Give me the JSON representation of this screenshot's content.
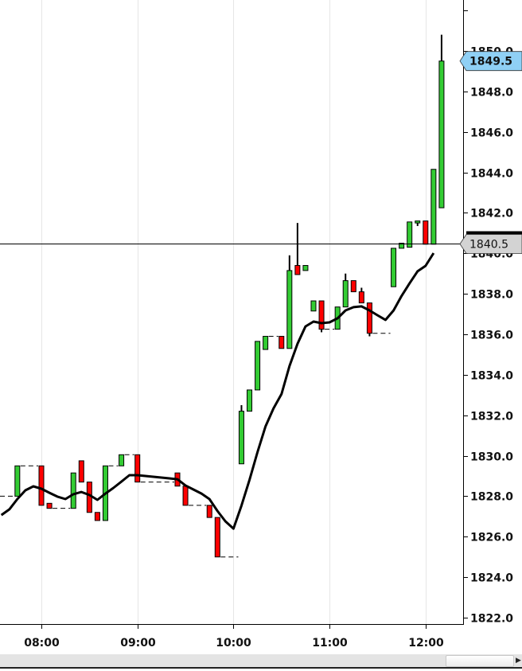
{
  "chart_data": {
    "type": "candlestick",
    "ylim": [
      1821.5,
      1852.5
    ],
    "y_ticks": [
      "1822.0",
      "1824.0",
      "1826.0",
      "1828.0",
      "1830.0",
      "1832.0",
      "1834.0",
      "1836.0",
      "1838.0",
      "1840.0",
      "1842.0",
      "1844.0",
      "1846.0",
      "1848.0",
      "1850.0"
    ],
    "x_ticks": [
      "08:00",
      "09:00",
      "10:00",
      "11:00",
      "12:00"
    ],
    "grid": "vertical",
    "colors": {
      "up": "#33cc33",
      "down": "#ff0000",
      "ma": "#000000",
      "last_price_label": "#8fd0f5",
      "crosshair_label": "#d3d3d3"
    },
    "candles": [
      {
        "t": "07:45",
        "o": 1828.0,
        "h": 1829.5,
        "l": 1828.0,
        "c": 1829.5
      },
      {
        "t": "08:00",
        "o": 1829.5,
        "h": 1829.5,
        "l": 1827.55,
        "c": 1827.55
      },
      {
        "t": "08:05",
        "o": 1827.65,
        "h": 1827.65,
        "l": 1827.4,
        "c": 1827.4
      },
      {
        "t": "08:20",
        "o": 1827.4,
        "h": 1829.15,
        "l": 1827.4,
        "c": 1829.15
      },
      {
        "t": "08:25",
        "o": 1829.75,
        "h": 1829.75,
        "l": 1828.7,
        "c": 1828.7
      },
      {
        "t": "08:30",
        "o": 1828.7,
        "h": 1828.7,
        "l": 1827.2,
        "c": 1827.2
      },
      {
        "t": "08:35",
        "o": 1827.2,
        "h": 1827.2,
        "l": 1826.8,
        "c": 1826.8
      },
      {
        "t": "08:40",
        "o": 1826.8,
        "h": 1829.5,
        "l": 1826.8,
        "c": 1829.5
      },
      {
        "t": "08:50",
        "o": 1829.5,
        "h": 1830.05,
        "l": 1829.5,
        "c": 1830.05
      },
      {
        "t": "09:00",
        "o": 1830.05,
        "h": 1830.05,
        "l": 1828.7,
        "c": 1828.7
      },
      {
        "t": "09:25",
        "o": 1829.15,
        "h": 1829.15,
        "l": 1828.5,
        "c": 1828.5
      },
      {
        "t": "09:30",
        "o": 1828.5,
        "h": 1828.5,
        "l": 1827.55,
        "c": 1827.55
      },
      {
        "t": "09:45",
        "o": 1827.55,
        "h": 1827.55,
        "l": 1826.95,
        "c": 1826.95
      },
      {
        "t": "09:50",
        "o": 1826.95,
        "h": 1826.95,
        "l": 1825.0,
        "c": 1825.0
      },
      {
        "t": "10:05",
        "o": 1829.6,
        "h": 1832.5,
        "l": 1829.6,
        "c": 1832.2
      },
      {
        "t": "10:10",
        "o": 1832.2,
        "h": 1833.25,
        "l": 1832.2,
        "c": 1833.25
      },
      {
        "t": "10:15",
        "o": 1833.25,
        "h": 1835.65,
        "l": 1833.25,
        "c": 1835.65
      },
      {
        "t": "10:20",
        "o": 1835.25,
        "h": 1835.9,
        "l": 1835.25,
        "c": 1835.9
      },
      {
        "t": "10:30",
        "o": 1835.9,
        "h": 1835.9,
        "l": 1835.3,
        "c": 1835.3
      },
      {
        "t": "10:35",
        "o": 1835.3,
        "h": 1839.9,
        "l": 1835.3,
        "c": 1839.15
      },
      {
        "t": "10:40",
        "o": 1839.4,
        "h": 1841.5,
        "l": 1838.95,
        "c": 1838.95
      },
      {
        "t": "10:45",
        "o": 1839.15,
        "h": 1839.4,
        "l": 1839.15,
        "c": 1839.4
      },
      {
        "t": "10:50",
        "o": 1837.15,
        "h": 1837.65,
        "l": 1837.15,
        "c": 1837.65
      },
      {
        "t": "10:55",
        "o": 1837.65,
        "h": 1837.65,
        "l": 1836.1,
        "c": 1836.25
      },
      {
        "t": "11:05",
        "o": 1836.25,
        "h": 1837.35,
        "l": 1836.25,
        "c": 1837.35
      },
      {
        "t": "11:10",
        "o": 1837.35,
        "h": 1839.0,
        "l": 1837.35,
        "c": 1838.65
      },
      {
        "t": "11:15",
        "o": 1838.65,
        "h": 1838.65,
        "l": 1838.1,
        "c": 1838.1
      },
      {
        "t": "11:20",
        "o": 1838.1,
        "h": 1838.3,
        "l": 1837.55,
        "c": 1837.55
      },
      {
        "t": "11:25",
        "o": 1837.55,
        "h": 1837.55,
        "l": 1835.9,
        "c": 1836.05
      },
      {
        "t": "11:40",
        "o": 1838.35,
        "h": 1840.25,
        "l": 1838.35,
        "c": 1840.25
      },
      {
        "t": "11:45",
        "o": 1840.25,
        "h": 1840.5,
        "l": 1840.25,
        "c": 1840.5
      },
      {
        "t": "11:50",
        "o": 1840.3,
        "h": 1841.55,
        "l": 1840.3,
        "c": 1841.55
      },
      {
        "t": "11:55",
        "o": 1841.5,
        "h": 1841.6,
        "l": 1841.35,
        "c": 1841.6
      },
      {
        "t": "12:00",
        "o": 1841.6,
        "h": 1841.6,
        "l": 1840.45,
        "c": 1840.45
      },
      {
        "t": "12:05",
        "o": 1840.45,
        "h": 1844.15,
        "l": 1840.45,
        "c": 1844.15
      },
      {
        "t": "12:10",
        "o": 1842.25,
        "h": 1850.8,
        "l": 1842.25,
        "c": 1849.5
      }
    ],
    "moving_average": {
      "start": "07:35",
      "step_minutes": 5,
      "values": [
        1827.07,
        1827.35,
        1827.86,
        1828.29,
        1828.49,
        1828.37,
        1828.17,
        1827.98,
        1827.86,
        1828.1,
        1828.21,
        1828.06,
        1827.82,
        1828.13,
        1828.41,
        1828.72,
        1829.04,
        1829.04,
        1829.0,
        1828.96,
        1828.92,
        1828.88,
        1828.84,
        1828.53,
        1828.33,
        1828.13,
        1827.86,
        1827.27,
        1826.76,
        1826.4,
        1827.54,
        1828.8,
        1830.18,
        1831.44,
        1832.34,
        1833.05,
        1834.43,
        1835.53,
        1836.39,
        1836.63,
        1836.55,
        1836.59,
        1836.79,
        1837.18,
        1837.34,
        1837.38,
        1837.18,
        1836.94,
        1836.71,
        1837.18,
        1837.89,
        1838.52,
        1839.11,
        1839.38,
        1840.01
      ]
    },
    "last_price_label": "1849.5",
    "crosshair_price": 1840.5,
    "crosshair_label": "1840.5"
  }
}
